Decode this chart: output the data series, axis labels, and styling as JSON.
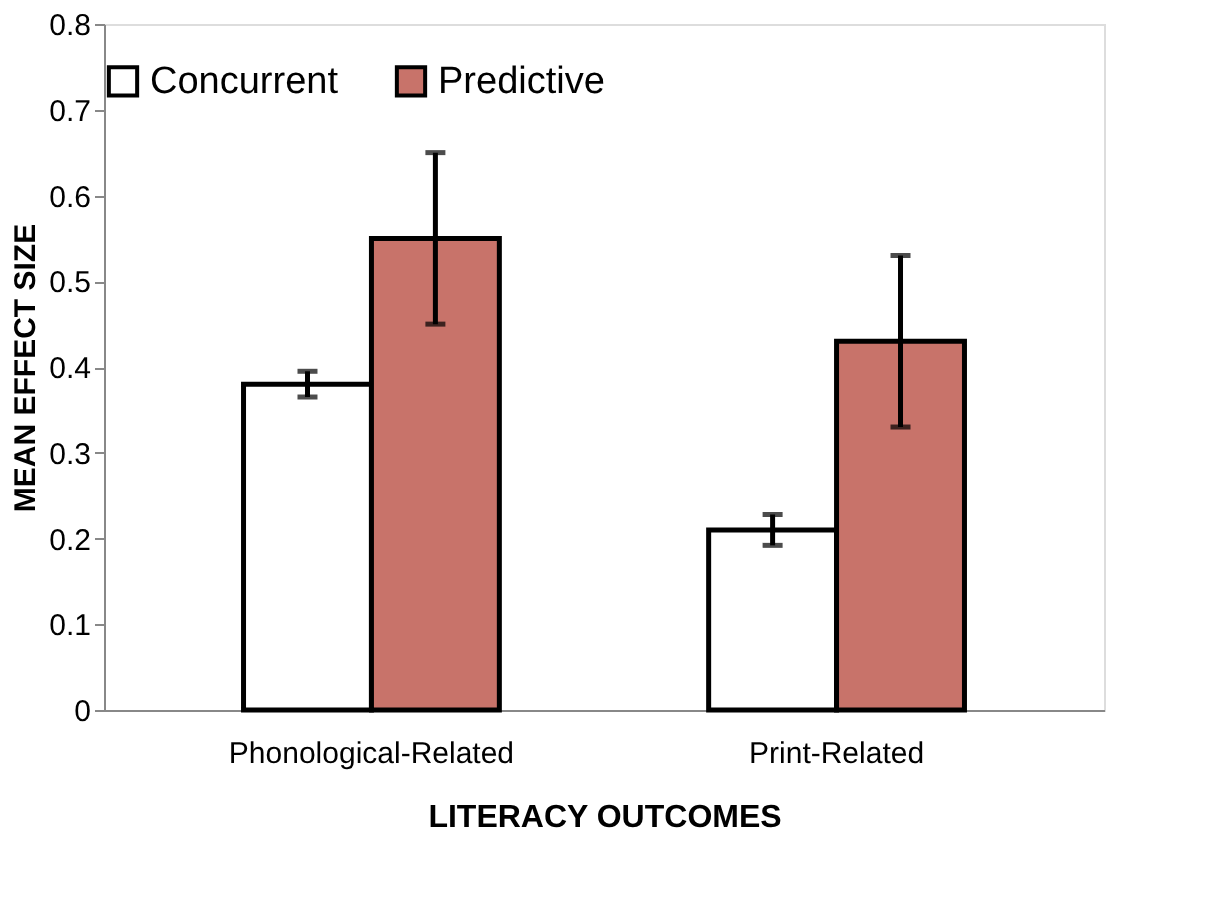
{
  "chart_data": {
    "type": "bar",
    "xlabel": "LITERACY OUTCOMES",
    "ylabel": "MEAN EFFECT SIZE",
    "categories": [
      "Phonological-Related",
      "Print-Related"
    ],
    "series": [
      {
        "name": "Concurrent",
        "color": "#ffffff",
        "values": [
          0.38,
          0.21
        ],
        "errors": [
          0.015,
          0.018
        ]
      },
      {
        "name": "Predictive",
        "color": "#c8736a",
        "values": [
          0.55,
          0.43
        ],
        "errors": [
          0.1,
          0.1
        ]
      }
    ],
    "ylim": [
      0,
      0.8
    ],
    "yticks": [
      0,
      0.1,
      0.2,
      0.3,
      0.4,
      0.5,
      0.6,
      0.7,
      0.8
    ],
    "grid": false,
    "legend": "top"
  }
}
